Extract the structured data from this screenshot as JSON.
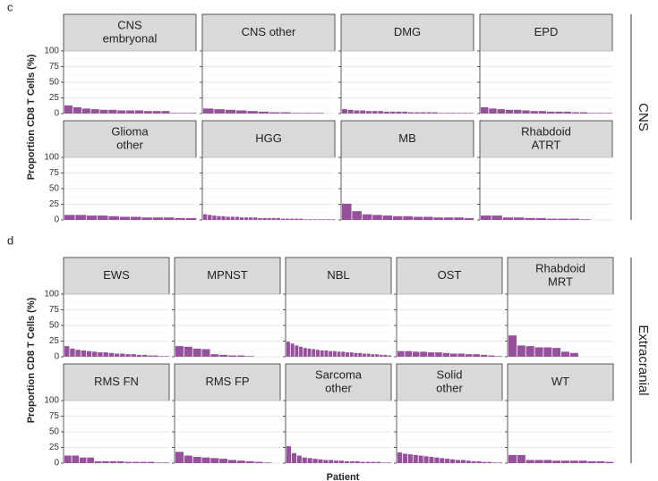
{
  "chart_data": [
    {
      "type": "bar",
      "panel": "c",
      "y_label": "Proportion CD8 T Cells (%)",
      "group_label": "CNS",
      "color": "#97509c",
      "ylim": [
        0,
        100
      ],
      "yticks": [
        0,
        25,
        50,
        75,
        100
      ],
      "grid": true,
      "facets": [
        {
          "title_lines": [
            "CNS",
            "embryonal"
          ],
          "values": [
            13,
            10,
            8,
            7,
            6,
            6,
            5,
            5,
            5,
            4,
            4,
            4,
            1,
            1,
            1
          ]
        },
        {
          "title_lines": [
            "CNS other"
          ],
          "values": [
            8,
            7,
            6,
            5,
            4,
            3,
            2,
            2,
            1,
            1,
            1
          ]
        },
        {
          "title_lines": [
            "DMG"
          ],
          "values": [
            7,
            6,
            5,
            5,
            4,
            4,
            4,
            3,
            3,
            3,
            3,
            2,
            2,
            2,
            2,
            2,
            1,
            1,
            1,
            1,
            1,
            1
          ]
        },
        {
          "title_lines": [
            "EPD"
          ],
          "values": [
            10,
            8,
            7,
            6,
            6,
            5,
            4,
            4,
            3,
            3,
            3,
            2,
            2,
            1,
            1,
            1
          ]
        },
        {
          "title_lines": [
            "Glioma",
            "other"
          ],
          "values": [
            8,
            8,
            7,
            7,
            6,
            5,
            5,
            4,
            4,
            4,
            3,
            3
          ]
        },
        {
          "title_lines": [
            "HGG"
          ],
          "values": [
            9,
            8,
            7,
            6,
            6,
            5,
            5,
            5,
            4,
            4,
            4,
            4,
            3,
            3,
            3,
            3,
            3,
            2,
            2,
            2,
            2,
            2,
            1,
            1,
            1,
            1,
            1,
            1,
            1
          ]
        },
        {
          "title_lines": [
            "MB"
          ],
          "values": [
            26,
            14,
            9,
            8,
            7,
            6,
            6,
            5,
            5,
            4,
            4,
            4,
            3
          ]
        },
        {
          "title_lines": [
            "Rhabdoid",
            "ATRT"
          ],
          "values": [
            7,
            7,
            4,
            4,
            3,
            3,
            2,
            2,
            2,
            1
          ]
        }
      ]
    },
    {
      "type": "bar",
      "panel": "d",
      "y_label": "Proportion CD8 T Cells (%)",
      "group_label": "Extracranial",
      "x_label": "Patient",
      "color": "#97509c",
      "ylim": [
        0,
        100
      ],
      "yticks": [
        0,
        25,
        50,
        75,
        100
      ],
      "grid": true,
      "facets": [
        {
          "title_lines": [
            "EWS"
          ],
          "values": [
            17,
            13,
            11,
            10,
            9,
            8,
            7,
            7,
            6,
            5,
            5,
            4,
            4,
            3,
            3,
            2,
            2,
            1,
            1
          ]
        },
        {
          "title_lines": [
            "MPNST"
          ],
          "values": [
            17,
            16,
            13,
            12,
            4,
            3,
            2,
            2,
            1
          ]
        },
        {
          "title_lines": [
            "NBL"
          ],
          "values": [
            24,
            21,
            18,
            16,
            14,
            13,
            12,
            11,
            10,
            10,
            9,
            9,
            8,
            8,
            7,
            7,
            6,
            6,
            5,
            5,
            4,
            4,
            3,
            3,
            2
          ]
        },
        {
          "title_lines": [
            "OST"
          ],
          "values": [
            9,
            9,
            8,
            8,
            7,
            7,
            6,
            5,
            5,
            4,
            4,
            3,
            2,
            1
          ]
        },
        {
          "title_lines": [
            "Rhabdoid",
            "MRT"
          ],
          "values": [
            34,
            18,
            17,
            15,
            15,
            14,
            8,
            6
          ]
        },
        {
          "title_lines": [
            "RMS FN"
          ],
          "values": [
            12,
            12,
            9,
            9,
            3,
            3,
            3,
            3,
            2,
            2,
            2,
            2,
            1,
            1
          ]
        },
        {
          "title_lines": [
            "RMS FP"
          ],
          "values": [
            18,
            12,
            10,
            9,
            8,
            7,
            5,
            4,
            3,
            2,
            1
          ]
        },
        {
          "title_lines": [
            "Sarcoma",
            "other"
          ],
          "values": [
            27,
            16,
            12,
            9,
            8,
            7,
            6,
            5,
            5,
            4,
            4,
            3,
            3,
            3,
            2,
            2,
            2,
            2,
            1,
            1
          ]
        },
        {
          "title_lines": [
            "Solid",
            "other"
          ],
          "values": [
            17,
            15,
            14,
            13,
            12,
            11,
            10,
            9,
            8,
            7,
            6,
            5,
            5,
            4,
            3,
            3,
            2,
            2,
            1,
            1
          ]
        },
        {
          "title_lines": [
            "WT"
          ],
          "values": [
            13,
            13,
            5,
            5,
            5,
            4,
            4,
            4,
            4,
            3,
            3,
            2
          ]
        }
      ]
    }
  ]
}
